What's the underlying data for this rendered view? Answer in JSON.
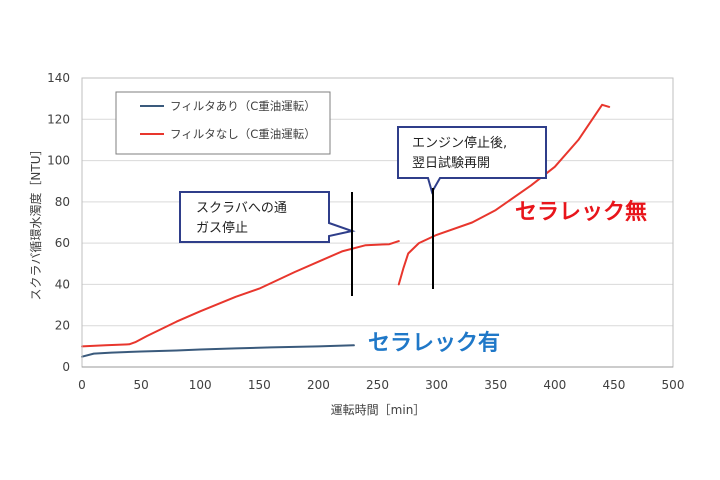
{
  "chart_data": {
    "type": "line",
    "xlabel": "運転時間［min］",
    "ylabel": "スクラバ循環水濁度［NTU］",
    "xlim": [
      0,
      500
    ],
    "ylim": [
      0,
      140
    ],
    "xticks": [
      0,
      50,
      100,
      150,
      200,
      250,
      300,
      350,
      400,
      450,
      500
    ],
    "yticks": [
      0,
      20,
      40,
      60,
      80,
      100,
      120,
      140
    ],
    "grid": "horizontal",
    "legend_position": "top-left",
    "series": [
      {
        "name": "フィルタあり（C重油運転）",
        "color": "#3a5a7c",
        "segments": [
          [
            [
              0,
              5
            ],
            [
              10,
              6.5
            ],
            [
              25,
              7
            ],
            [
              50,
              7.5
            ],
            [
              80,
              8
            ],
            [
              100,
              8.5
            ],
            [
              130,
              9
            ],
            [
              160,
              9.5
            ],
            [
              200,
              10
            ],
            [
              230,
              10.5
            ]
          ]
        ]
      },
      {
        "name": "フィルタなし（C重油運転）",
        "color": "#e8362d",
        "segments": [
          [
            [
              0,
              10
            ],
            [
              20,
              10.5
            ],
            [
              40,
              11
            ],
            [
              45,
              12
            ],
            [
              55,
              15
            ],
            [
              80,
              22
            ],
            [
              100,
              27
            ],
            [
              130,
              34
            ],
            [
              150,
              38
            ],
            [
              180,
              46
            ],
            [
              200,
              51
            ],
            [
              220,
              56
            ],
            [
              240,
              59
            ],
            [
              260,
              59.5
            ],
            [
              268,
              61
            ]
          ],
          [
            [
              268,
              40
            ],
            [
              272,
              48
            ],
            [
              276,
              55
            ],
            [
              285,
              60
            ],
            [
              300,
              64
            ],
            [
              330,
              70
            ],
            [
              350,
              76
            ],
            [
              380,
              88
            ],
            [
              400,
              97
            ],
            [
              420,
              110
            ],
            [
              440,
              127
            ],
            [
              446,
              126
            ]
          ]
        ]
      }
    ],
    "annotations": [
      {
        "text_lines": [
          "スクラバへの通",
          "ガス停止"
        ],
        "x": 230
      },
      {
        "text_lines": [
          "エンジン停止後,",
          "翌日試験再開"
        ],
        "x": 298
      }
    ],
    "labels": [
      {
        "text": "セラレック無",
        "color": "#e8151b"
      },
      {
        "text": "セラレック有",
        "color": "#1f78c8"
      }
    ]
  }
}
